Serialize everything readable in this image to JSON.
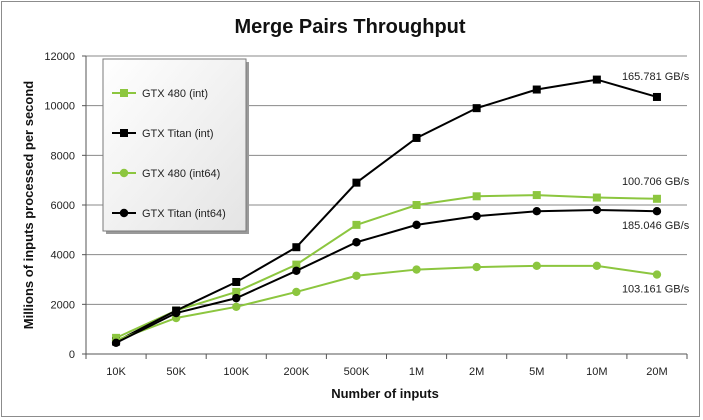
{
  "chart_data": {
    "type": "line",
    "title": "Merge Pairs Throughput",
    "xlabel": "Number of inputs",
    "ylabel": "Millions of inputs processed per second",
    "categories": [
      "10K",
      "50K",
      "100K",
      "200K",
      "500K",
      "1M",
      "2M",
      "5M",
      "10M",
      "20M"
    ],
    "ylim": [
      0,
      12000
    ],
    "yticks": [
      0,
      2000,
      4000,
      6000,
      8000,
      10000,
      12000
    ],
    "grid": "horizontal",
    "legend_placement": "top-left",
    "series": [
      {
        "name": "GTX 480 (int)",
        "marker": "square",
        "color": "#8cc63f",
        "values": [
          650,
          1750,
          2500,
          3600,
          5200,
          6000,
          6350,
          6400,
          6300,
          6250
        ]
      },
      {
        "name": "GTX Titan (int)",
        "marker": "square",
        "color": "#000000",
        "values": [
          500,
          1750,
          2900,
          4300,
          6900,
          8700,
          9900,
          10650,
          11050,
          10350
        ]
      },
      {
        "name": "GTX 480 (int64)",
        "marker": "circle",
        "color": "#8cc63f",
        "values": [
          550,
          1450,
          1900,
          2500,
          3150,
          3400,
          3500,
          3550,
          3550,
          3200
        ]
      },
      {
        "name": "GTX Titan (int64)",
        "marker": "circle",
        "color": "#000000",
        "values": [
          450,
          1650,
          2250,
          3350,
          4500,
          5200,
          5550,
          5750,
          5800,
          5750
        ]
      }
    ],
    "annotations": [
      {
        "text": "165.781 GB/s",
        "series": 1,
        "category": "20M"
      },
      {
        "text": "100.706 GB/s",
        "series": 0,
        "category": "20M"
      },
      {
        "text": "185.046 GB/s",
        "series": 3,
        "category": "20M"
      },
      {
        "text": "103.161 GB/s",
        "series": 2,
        "category": "20M"
      }
    ]
  }
}
